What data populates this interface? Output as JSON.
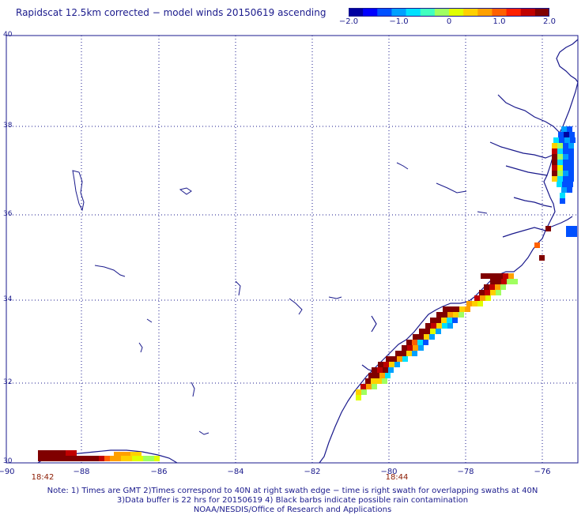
{
  "title": "Rapidscat 12.5km corrected − model winds 20150619 ascending",
  "colorbar": {
    "ticks": [
      {
        "value": -2.0,
        "label": "−2.0"
      },
      {
        "value": -1.0,
        "label": "−1.0"
      },
      {
        "value": 0,
        "label": "0"
      },
      {
        "value": 1.0,
        "label": "1.0"
      },
      {
        "value": 2.0,
        "label": "2.0"
      }
    ],
    "colors": [
      "#0000a0",
      "#0000ff",
      "#0050ff",
      "#00a0ff",
      "#00e0ff",
      "#40ffc0",
      "#a0ff60",
      "#e0ff00",
      "#ffd000",
      "#ffa000",
      "#ff6000",
      "#ff2000",
      "#c00000",
      "#800000"
    ]
  },
  "axes": {
    "x_ticks": [
      "−90",
      "−88",
      "−86",
      "−84",
      "−82",
      "−80",
      "−78",
      "−76"
    ],
    "y_ticks": [
      "40",
      "38",
      "36",
      "34",
      "32",
      "30"
    ]
  },
  "time_labels": [
    {
      "label": "18:42"
    },
    {
      "label": "18:44"
    }
  ],
  "notes": [
    "Note: 1) Times are GMT 2)Times correspond to 40N at right swath edge − time is right swath for overlapping swaths at 40N",
    "3)Data buffer is 22 hrs for 20150619 4) Black barbs indicate possible rain contamination",
    "NOAA/NESDIS/Office of Research and Applications"
  ]
}
